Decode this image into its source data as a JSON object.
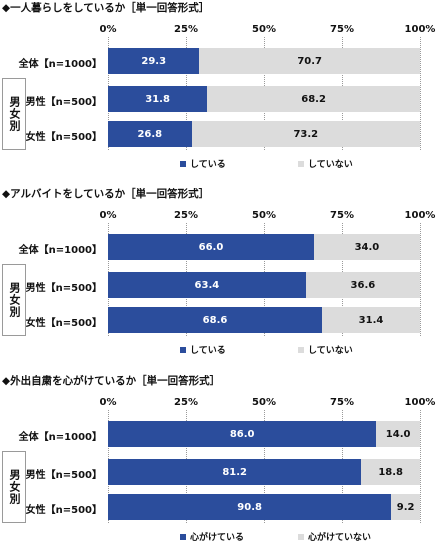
{
  "group_label": "男女別",
  "chart_data": [
    {
      "type": "bar",
      "orientation": "horizontal",
      "stacked": true,
      "title": "◆一人暮らしをしているか［単一回答形式］",
      "categories": [
        "全体【n=1000】",
        "男性【n=500】",
        "女性【n=500】"
      ],
      "series": [
        {
          "name": "している",
          "values": [
            29.3,
            31.8,
            26.8
          ],
          "color": "#2b4d9c"
        },
        {
          "name": "していない",
          "values": [
            70.7,
            68.2,
            73.2
          ],
          "color": "#dcdcdc"
        }
      ],
      "xlim": [
        0,
        100
      ],
      "ticks": [
        "0%",
        "25%",
        "50%",
        "75%",
        "100%"
      ],
      "grid": true,
      "legend": "bottom"
    },
    {
      "type": "bar",
      "orientation": "horizontal",
      "stacked": true,
      "title": "◆アルバイトをしているか［単一回答形式］",
      "categories": [
        "全体【n=1000】",
        "男性【n=500】",
        "女性【n=500】"
      ],
      "series": [
        {
          "name": "している",
          "values": [
            66.0,
            63.4,
            68.6
          ],
          "color": "#2b4d9c"
        },
        {
          "name": "していない",
          "values": [
            34.0,
            36.6,
            31.4
          ],
          "color": "#dcdcdc"
        }
      ],
      "xlim": [
        0,
        100
      ],
      "ticks": [
        "0%",
        "25%",
        "50%",
        "75%",
        "100%"
      ],
      "grid": true,
      "legend": "bottom"
    },
    {
      "type": "bar",
      "orientation": "horizontal",
      "stacked": true,
      "title": "◆外出自粛を心がけているか［単一回答形式］",
      "categories": [
        "全体【n=1000】",
        "男性【n=500】",
        "女性【n=500】"
      ],
      "series": [
        {
          "name": "心がけている",
          "values": [
            86.0,
            81.2,
            90.8
          ],
          "color": "#2b4d9c"
        },
        {
          "name": "心がけていない",
          "values": [
            14.0,
            18.8,
            9.2
          ],
          "color": "#dcdcdc"
        }
      ],
      "xlim": [
        0,
        100
      ],
      "ticks": [
        "0%",
        "25%",
        "50%",
        "75%",
        "100%"
      ],
      "grid": true,
      "legend": "bottom"
    }
  ]
}
